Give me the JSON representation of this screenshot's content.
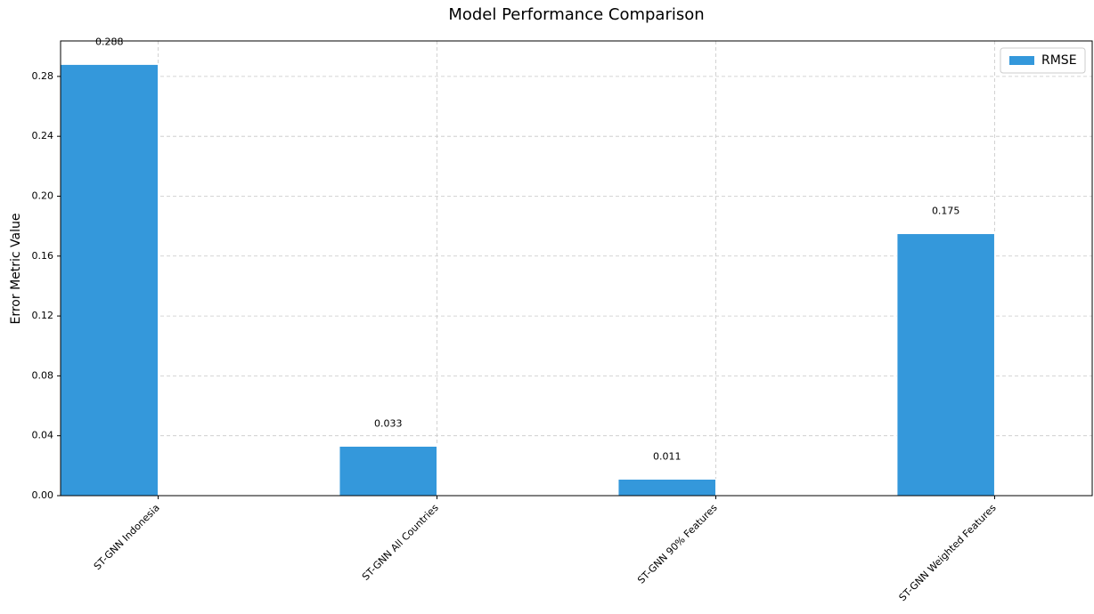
{
  "chart_data": {
    "type": "bar",
    "title": "Model Performance Comparison",
    "y_label": "Error Metric Value",
    "categories": [
      "ST-GNN Indonesia",
      "ST-GNN All Countries",
      "ST-GNN 90% Features",
      "ST-GNN Weighted Features"
    ],
    "series": [
      {
        "name": "RMSE",
        "color": "#3498db",
        "values": [
          0.288,
          0.033,
          0.011,
          0.175
        ]
      }
    ],
    "ylim": [
      0,
      0.3037
    ],
    "yticks": [
      {
        "value": 0,
        "label": "0.00"
      },
      {
        "value": 0.04,
        "label": "0.04"
      },
      {
        "value": 0.08,
        "label": "0.08"
      },
      {
        "value": 0.12,
        "label": "0.12"
      },
      {
        "value": 0.16,
        "label": "0.16"
      },
      {
        "value": 0.2,
        "label": "0.20"
      },
      {
        "value": 0.24,
        "label": "0.24"
      },
      {
        "value": 0.28,
        "label": "0.28"
      }
    ],
    "grid": true,
    "legend": "upper-right"
  }
}
